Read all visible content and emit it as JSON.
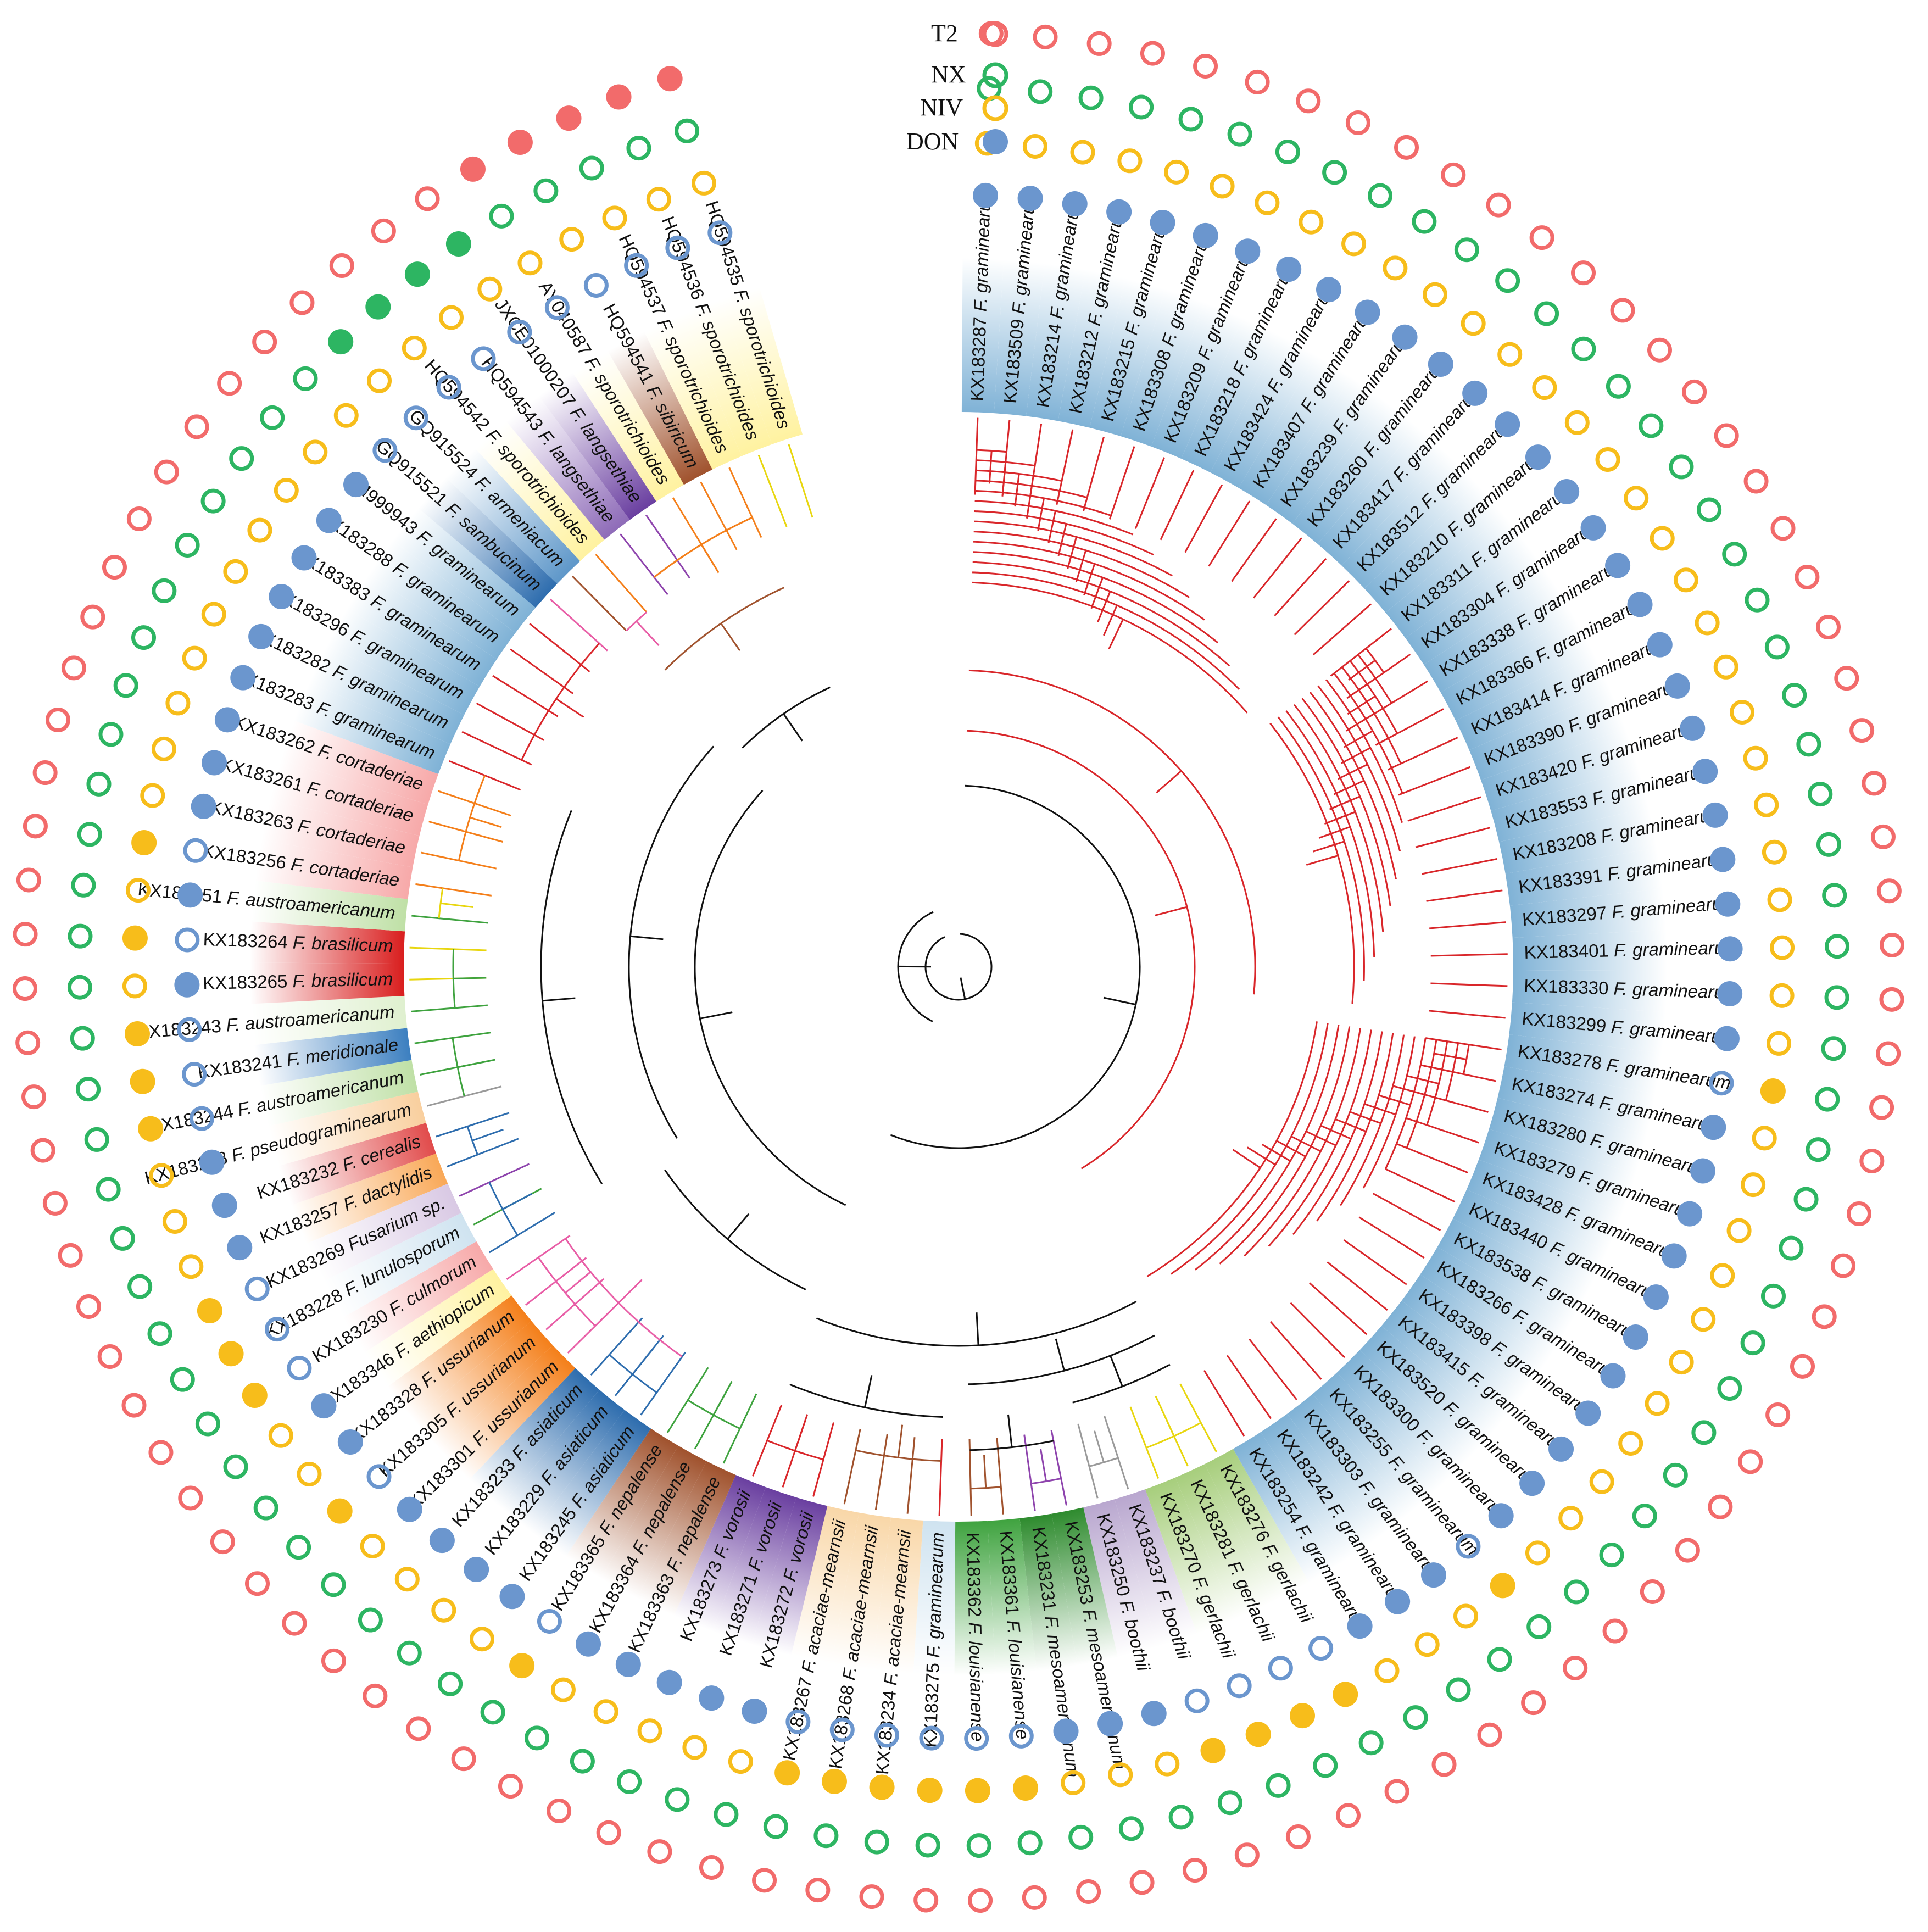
{
  "legend": [
    {
      "label": "T2",
      "color": "#F26B6B"
    },
    {
      "label": "NX",
      "color": "#2DB562"
    },
    {
      "label": "NIV",
      "color": "#F7BD1B"
    },
    {
      "label": "DON",
      "color": "#6B96CE"
    }
  ],
  "tips": [
    {
      "acc": "KX183287",
      "sp": "F. graminearum",
      "c": "#7FB2D6",
      "br": "#D9262A",
      "t": [
        0,
        0,
        0,
        1
      ]
    },
    {
      "acc": "KX183509",
      "sp": "F. graminearum",
      "c": "#7FB2D6",
      "br": "#D9262A",
      "t": [
        0,
        0,
        0,
        1
      ]
    },
    {
      "acc": "KX183214",
      "sp": "F. graminearum",
      "c": "#7FB2D6",
      "br": "#D9262A",
      "t": [
        0,
        0,
        0,
        1
      ]
    },
    {
      "acc": "KX183212",
      "sp": "F. graminearum",
      "c": "#7FB2D6",
      "br": "#D9262A",
      "t": [
        0,
        0,
        0,
        1
      ]
    },
    {
      "acc": "KX183215",
      "sp": "F. graminearum",
      "c": "#7FB2D6",
      "br": "#D9262A",
      "t": [
        0,
        0,
        0,
        1
      ]
    },
    {
      "acc": "KX183308",
      "sp": "F. graminearum",
      "c": "#7FB2D6",
      "br": "#D9262A",
      "t": [
        0,
        0,
        0,
        1
      ]
    },
    {
      "acc": "KX183209",
      "sp": "F. graminearum",
      "c": "#7FB2D6",
      "br": "#D9262A",
      "t": [
        0,
        0,
        0,
        1
      ]
    },
    {
      "acc": "KX183218",
      "sp": "F. graminearum",
      "c": "#7FB2D6",
      "br": "#D9262A",
      "t": [
        0,
        0,
        0,
        1
      ]
    },
    {
      "acc": "KX183424",
      "sp": "F. graminearum",
      "c": "#7FB2D6",
      "br": "#D9262A",
      "t": [
        0,
        0,
        0,
        1
      ]
    },
    {
      "acc": "KX183407",
      "sp": "F. graminearum",
      "c": "#7FB2D6",
      "br": "#D9262A",
      "t": [
        0,
        0,
        0,
        1
      ]
    },
    {
      "acc": "KX183239",
      "sp": "F. graminearum",
      "c": "#7FB2D6",
      "br": "#D9262A",
      "t": [
        0,
        0,
        0,
        1
      ]
    },
    {
      "acc": "KX183260",
      "sp": "F. graminearum",
      "c": "#7FB2D6",
      "br": "#D9262A",
      "t": [
        0,
        0,
        0,
        1
      ]
    },
    {
      "acc": "KX183417",
      "sp": "F. graminearum",
      "c": "#7FB2D6",
      "br": "#D9262A",
      "t": [
        0,
        0,
        0,
        1
      ]
    },
    {
      "acc": "KX183512",
      "sp": "F. graminearum",
      "c": "#7FB2D6",
      "br": "#D9262A",
      "t": [
        0,
        0,
        0,
        1
      ]
    },
    {
      "acc": "KX183210",
      "sp": "F. graminearum",
      "c": "#7FB2D6",
      "br": "#D9262A",
      "t": [
        0,
        0,
        0,
        1
      ]
    },
    {
      "acc": "KX183311",
      "sp": "F. graminearum",
      "c": "#7FB2D6",
      "br": "#D9262A",
      "t": [
        0,
        0,
        0,
        1
      ]
    },
    {
      "acc": "KX183304",
      "sp": "F. graminearum",
      "c": "#7FB2D6",
      "br": "#D9262A",
      "t": [
        0,
        0,
        0,
        1
      ]
    },
    {
      "acc": "KX183338",
      "sp": "F. graminearum",
      "c": "#7FB2D6",
      "br": "#D9262A",
      "t": [
        0,
        0,
        0,
        1
      ]
    },
    {
      "acc": "KX183366",
      "sp": "F. graminearum",
      "c": "#7FB2D6",
      "br": "#D9262A",
      "t": [
        0,
        0,
        0,
        1
      ]
    },
    {
      "acc": "KX183414",
      "sp": "F. graminearum",
      "c": "#7FB2D6",
      "br": "#D9262A",
      "t": [
        0,
        0,
        0,
        1
      ]
    },
    {
      "acc": "KX183390",
      "sp": "F. graminearum",
      "c": "#7FB2D6",
      "br": "#D9262A",
      "t": [
        0,
        0,
        0,
        1
      ]
    },
    {
      "acc": "KX183420",
      "sp": "F. graminearum",
      "c": "#7FB2D6",
      "br": "#D9262A",
      "t": [
        0,
        0,
        0,
        1
      ]
    },
    {
      "acc": "KX183553",
      "sp": "F. graminearum",
      "c": "#7FB2D6",
      "br": "#D9262A",
      "t": [
        0,
        0,
        0,
        1
      ]
    },
    {
      "acc": "KX183208",
      "sp": "F. graminearum",
      "c": "#7FB2D6",
      "br": "#D9262A",
      "t": [
        0,
        0,
        0,
        1
      ]
    },
    {
      "acc": "KX183391",
      "sp": "F. graminearum",
      "c": "#7FB2D6",
      "br": "#D9262A",
      "t": [
        0,
        0,
        0,
        1
      ]
    },
    {
      "acc": "KX183297",
      "sp": "F. graminearum",
      "c": "#7FB2D6",
      "br": "#D9262A",
      "t": [
        0,
        0,
        0,
        1
      ]
    },
    {
      "acc": "KX183401",
      "sp": "F. graminearum",
      "c": "#7FB2D6",
      "br": "#D9262A",
      "t": [
        0,
        0,
        0,
        1
      ]
    },
    {
      "acc": "KX183330",
      "sp": "F. graminearum",
      "c": "#7FB2D6",
      "br": "#D9262A",
      "t": [
        0,
        0,
        0,
        1
      ]
    },
    {
      "acc": "KX183299",
      "sp": "F. graminearum",
      "c": "#7FB2D6",
      "br": "#D9262A",
      "t": [
        0,
        0,
        0,
        1
      ]
    },
    {
      "acc": "KX183278",
      "sp": "F. graminearum",
      "c": "#7FB2D6",
      "br": "#D9262A",
      "t": [
        0,
        0,
        1,
        0
      ]
    },
    {
      "acc": "KX183274",
      "sp": "F. graminearum",
      "c": "#7FB2D6",
      "br": "#D9262A",
      "t": [
        0,
        0,
        0,
        1
      ]
    },
    {
      "acc": "KX183280",
      "sp": "F. graminearum",
      "c": "#7FB2D6",
      "br": "#D9262A",
      "t": [
        0,
        0,
        0,
        1
      ]
    },
    {
      "acc": "KX183279",
      "sp": "F. graminearum",
      "c": "#7FB2D6",
      "br": "#D9262A",
      "t": [
        0,
        0,
        0,
        1
      ]
    },
    {
      "acc": "KX183428",
      "sp": "F. graminearum",
      "c": "#7FB2D6",
      "br": "#D9262A",
      "t": [
        0,
        0,
        0,
        1
      ]
    },
    {
      "acc": "KX183440",
      "sp": "F. graminearum",
      "c": "#7FB2D6",
      "br": "#D9262A",
      "t": [
        0,
        0,
        0,
        1
      ]
    },
    {
      "acc": "KX183538",
      "sp": "F. graminearum",
      "c": "#7FB2D6",
      "br": "#D9262A",
      "t": [
        0,
        0,
        0,
        1
      ]
    },
    {
      "acc": "KX183266",
      "sp": "F. graminearum",
      "c": "#7FB2D6",
      "br": "#D9262A",
      "t": [
        0,
        0,
        0,
        1
      ]
    },
    {
      "acc": "KX183398",
      "sp": "F. graminearum",
      "c": "#7FB2D6",
      "br": "#D9262A",
      "t": [
        0,
        0,
        0,
        1
      ]
    },
    {
      "acc": "KX183415",
      "sp": "F. graminearum",
      "c": "#7FB2D6",
      "br": "#D9262A",
      "t": [
        0,
        0,
        0,
        1
      ]
    },
    {
      "acc": "KX183520",
      "sp": "F. graminearum",
      "c": "#7FB2D6",
      "br": "#D9262A",
      "t": [
        0,
        0,
        0,
        1
      ]
    },
    {
      "acc": "KX183300",
      "sp": "F. graminearum",
      "c": "#7FB2D6",
      "br": "#D9262A",
      "t": [
        0,
        0,
        0,
        1
      ]
    },
    {
      "acc": "KX183255",
      "sp": "F. graminearum",
      "c": "#7FB2D6",
      "br": "#D9262A",
      "t": [
        0,
        0,
        1,
        0
      ]
    },
    {
      "acc": "KX183303",
      "sp": "F. graminearum",
      "c": "#7FB2D6",
      "br": "#D9262A",
      "t": [
        0,
        0,
        0,
        1
      ]
    },
    {
      "acc": "KX183242",
      "sp": "F. graminearum",
      "c": "#7FB2D6",
      "br": "#D9262A",
      "t": [
        0,
        0,
        0,
        1
      ]
    },
    {
      "acc": "KX183254",
      "sp": "F. graminearum",
      "c": "#7FB2D6",
      "br": "#D9262A",
      "t": [
        0,
        0,
        0,
        1
      ]
    },
    {
      "acc": "KX183276",
      "sp": "F. gerlachii",
      "c": "#A7CE7C",
      "br": "#E8D60F",
      "t": [
        0,
        0,
        1,
        0
      ]
    },
    {
      "acc": "KX183281",
      "sp": "F. gerlachii",
      "c": "#A7CE7C",
      "br": "#E8D60F",
      "t": [
        0,
        0,
        1,
        0
      ]
    },
    {
      "acc": "KX183270",
      "sp": "F. gerlachii",
      "c": "#A7CE7C",
      "br": "#E8D60F",
      "t": [
        0,
        0,
        1,
        0
      ]
    },
    {
      "acc": "KX183237",
      "sp": "F. boothii",
      "c": "#B9A7CF",
      "br": "#9A9A9A",
      "t": [
        0,
        0,
        1,
        0
      ]
    },
    {
      "acc": "KX183250",
      "sp": "F. boothii",
      "c": "#B9A7CF",
      "br": "#9A9A9A",
      "t": [
        0,
        0,
        0,
        1
      ]
    },
    {
      "acc": "KX183253",
      "sp": "F. mesoamericanum",
      "c": "#2E8B2E",
      "br": "#8E44AD",
      "t": [
        0,
        0,
        0,
        1
      ]
    },
    {
      "acc": "KX183231",
      "sp": "F. mesoamericanum",
      "c": "#2E8B2E",
      "br": "#8E44AD",
      "t": [
        0,
        0,
        0,
        1
      ]
    },
    {
      "acc": "KX183361",
      "sp": "F. louisianense",
      "c": "#3FA33F",
      "br": "#A0522D",
      "t": [
        0,
        0,
        1,
        0
      ]
    },
    {
      "acc": "KX183362",
      "sp": "F. louisianense",
      "c": "#3FA33F",
      "br": "#A0522D",
      "t": [
        0,
        0,
        1,
        0
      ]
    },
    {
      "acc": "KX183275",
      "sp": "F. graminearum",
      "c": "#CFE3F0",
      "br": "#D9262A",
      "t": [
        0,
        0,
        1,
        0
      ]
    },
    {
      "acc": "KX183234",
      "sp": "F. acaciae-mearnsii",
      "c": "#F9D7A8",
      "br": "#A0522D",
      "t": [
        0,
        0,
        1,
        0
      ]
    },
    {
      "acc": "KX183268",
      "sp": "F. acaciae-mearnsii",
      "c": "#F9D7A8",
      "br": "#A0522D",
      "t": [
        0,
        0,
        1,
        0
      ]
    },
    {
      "acc": "KX183267",
      "sp": "F. acaciae-mearnsii",
      "c": "#F9D7A8",
      "br": "#A0522D",
      "t": [
        0,
        0,
        1,
        0
      ]
    },
    {
      "acc": "KX183272",
      "sp": "F. vorosii",
      "c": "#6A3FA0",
      "br": "#D9262A",
      "t": [
        0,
        0,
        0,
        1
      ]
    },
    {
      "acc": "KX183271",
      "sp": "F. vorosii",
      "c": "#6A3FA0",
      "br": "#D9262A",
      "t": [
        0,
        0,
        0,
        1
      ]
    },
    {
      "acc": "KX183273",
      "sp": "F. vorosii",
      "c": "#6A3FA0",
      "br": "#D9262A",
      "t": [
        0,
        0,
        0,
        1
      ]
    },
    {
      "acc": "KX183363",
      "sp": "F. nepalense",
      "c": "#A0522D",
      "br": "#3FA33F",
      "t": [
        0,
        0,
        0,
        1
      ]
    },
    {
      "acc": "KX183364",
      "sp": "F. nepalense",
      "c": "#A0522D",
      "br": "#3FA33F",
      "t": [
        0,
        0,
        0,
        1
      ]
    },
    {
      "acc": "KX183365",
      "sp": "F. nepalense",
      "c": "#A0522D",
      "br": "#3FA33F",
      "t": [
        0,
        0,
        1,
        0
      ]
    },
    {
      "acc": "KX183245",
      "sp": "F. asiaticum",
      "c": "#2E6DAE",
      "br": "#2E6DAE",
      "t": [
        0,
        0,
        0,
        1
      ]
    },
    {
      "acc": "KX183229",
      "sp": "F. asiaticum",
      "c": "#2E6DAE",
      "br": "#2E6DAE",
      "t": [
        0,
        0,
        0,
        1
      ]
    },
    {
      "acc": "KX183233",
      "sp": "F. asiaticum",
      "c": "#2E6DAE",
      "br": "#2E6DAE",
      "t": [
        0,
        0,
        0,
        1
      ]
    },
    {
      "acc": "KX183301",
      "sp": "F. ussurianum",
      "c": "#F47F1A",
      "br": "#E85DA6",
      "t": [
        0,
        0,
        0,
        1
      ]
    },
    {
      "acc": "KX183305",
      "sp": "F. ussurianum",
      "c": "#F47F1A",
      "br": "#E85DA6",
      "t": [
        0,
        0,
        1,
        0
      ]
    },
    {
      "acc": "KX183328",
      "sp": "F. ussurianum",
      "c": "#F47F1A",
      "br": "#E85DA6",
      "t": [
        0,
        0,
        0,
        1
      ]
    },
    {
      "acc": "KX183346",
      "sp": "F. aethiopicum",
      "c": "#FFF2A0",
      "br": "#E85DA6",
      "t": [
        0,
        0,
        0,
        1
      ]
    },
    {
      "acc": "KX183230",
      "sp": "F. culmorum",
      "c": "#F7A9A9",
      "br": "#2E6DAE",
      "t": [
        0,
        0,
        1,
        0
      ]
    },
    {
      "acc": "KX183228",
      "sp": "F. lunulosporum",
      "c": "#CFE3F0",
      "br": "#3FA33F",
      "t": [
        0,
        0,
        1,
        0
      ]
    },
    {
      "acc": "KX183269",
      "sp": "Fusarium sp.",
      "c": "#D9C9E4",
      "br": "#8E44AD",
      "t": [
        0,
        0,
        1,
        0
      ]
    },
    {
      "acc": "KX183257",
      "sp": "F. dactylidis",
      "c": "#F9A857",
      "br": "#2E6DAE",
      "t": [
        0,
        0,
        0,
        1
      ]
    },
    {
      "acc": "KX183232",
      "sp": "F. cerealis",
      "c": "#E14B4B",
      "br": "#2E6DAE",
      "t": [
        0,
        0,
        0,
        1
      ]
    },
    {
      "acc": "KX183238",
      "sp": "F. pseudograminearum",
      "c": "#F9CF9E",
      "br": "#9A9A9A",
      "t": [
        0,
        0,
        0,
        1
      ]
    },
    {
      "acc": "KX183244",
      "sp": "F. austroamericanum",
      "c": "#BFE0A6",
      "br": "#3FA33F",
      "t": [
        0,
        0,
        1,
        0
      ]
    },
    {
      "acc": "KX183241",
      "sp": "F. meridionale",
      "c": "#3C7FC0",
      "br": "#3FA33F",
      "t": [
        0,
        0,
        1,
        0
      ]
    },
    {
      "acc": "KX183243",
      "sp": "F. austroamericanum",
      "c": "#DFF0CF",
      "br": "#3FA33F",
      "t": [
        0,
        0,
        1,
        0
      ]
    },
    {
      "acc": "KX183265",
      "sp": "F. brasilicum",
      "c": "#D91E1E",
      "br": "#E8D60F",
      "t": [
        0,
        0,
        0,
        1
      ]
    },
    {
      "acc": "KX183264",
      "sp": "F. brasilicum",
      "c": "#D91E1E",
      "br": "#E8D60F",
      "t": [
        0,
        0,
        1,
        0
      ]
    },
    {
      "acc": "KX183251",
      "sp": "F. austroamericanum",
      "c": "#BFE0A6",
      "br": "#3FA33F",
      "t": [
        0,
        0,
        0,
        1
      ]
    },
    {
      "acc": "KX183256",
      "sp": "F. cortaderiae",
      "c": "#F7A9A9",
      "br": "#F47F1A",
      "t": [
        0,
        0,
        1,
        0
      ]
    },
    {
      "acc": "KX183263",
      "sp": "F. cortaderiae",
      "c": "#F7A9A9",
      "br": "#F47F1A",
      "t": [
        0,
        0,
        0,
        1
      ]
    },
    {
      "acc": "KX183261",
      "sp": "F. cortaderiae",
      "c": "#F7A9A9",
      "br": "#F47F1A",
      "t": [
        0,
        0,
        0,
        1
      ]
    },
    {
      "acc": "KX183262",
      "sp": "F. cortaderiae",
      "c": "#F7A9A9",
      "br": "#F47F1A",
      "t": [
        0,
        0,
        0,
        1
      ]
    },
    {
      "acc": "KX183283",
      "sp": "F. graminearum",
      "c": "#7FB2D6",
      "br": "#D9262A",
      "t": [
        0,
        0,
        0,
        1
      ]
    },
    {
      "acc": "KX183282",
      "sp": "F. graminearum",
      "c": "#7FB2D6",
      "br": "#D9262A",
      "t": [
        0,
        0,
        0,
        1
      ]
    },
    {
      "acc": "KX183296",
      "sp": "F. graminearum",
      "c": "#7FB2D6",
      "br": "#D9262A",
      "t": [
        0,
        0,
        0,
        1
      ]
    },
    {
      "acc": "KX183383",
      "sp": "F. graminearum",
      "c": "#7FB2D6",
      "br": "#D9262A",
      "t": [
        0,
        0,
        0,
        1
      ]
    },
    {
      "acc": "KX183288",
      "sp": "F. graminearum",
      "c": "#7FB2D6",
      "br": "#D9262A",
      "t": [
        0,
        0,
        0,
        1
      ]
    },
    {
      "acc": "KM999943",
      "sp": "F. graminearum",
      "c": "#7FB2D6",
      "br": "#D9262A",
      "t": [
        0,
        0,
        0,
        1
      ]
    },
    {
      "acc": "GQ915521",
      "sp": "F. sambucinum",
      "c": "#2E6DAE",
      "br": "#E85DA6",
      "t": [
        0,
        0,
        0,
        0
      ]
    },
    {
      "acc": "GQ915524",
      "sp": "F. armeniacum",
      "c": "#5E97C9",
      "br": "#A0522D",
      "t": [
        0,
        1,
        0,
        0
      ]
    },
    {
      "acc": "HQ594542",
      "sp": "F. sporotrichioides",
      "c": "#FFF2A0",
      "br": "#F47F1A",
      "t": [
        0,
        1,
        0,
        0
      ]
    },
    {
      "acc": "HQ594543",
      "sp": "F. langsethiae",
      "c": "#8E6BB8",
      "br": "#8E44AD",
      "t": [
        0,
        1,
        0,
        0
      ]
    },
    {
      "acc": "JXCE01000207",
      "sp": "F. langsethiae",
      "c": "#6A3FA0",
      "br": "#8E44AD",
      "t": [
        0,
        1,
        0,
        0
      ]
    },
    {
      "acc": "AY040587",
      "sp": "F. sporotrichioides",
      "c": "#FFF2A0",
      "br": "#F47F1A",
      "t": [
        1,
        0,
        0,
        0
      ]
    },
    {
      "acc": "HQ594541",
      "sp": "F. sibiricum",
      "c": "#A0522D",
      "br": "#F47F1A",
      "t": [
        1,
        0,
        0,
        0
      ]
    },
    {
      "acc": "HQ594537",
      "sp": "F. sporotrichioides",
      "c": "#FFF2A0",
      "br": "#F47F1A",
      "t": [
        1,
        0,
        0,
        0
      ]
    },
    {
      "acc": "HQ594536",
      "sp": "F. sporotrichioides",
      "c": "#FFF2A0",
      "br": "#E8D60F",
      "t": [
        1,
        0,
        0,
        0
      ]
    },
    {
      "acc": "HQ594535",
      "sp": "F. sporotrichioides",
      "c": "#FFF2A0",
      "br": "#E8D60F",
      "t": [
        1,
        0,
        0,
        0
      ]
    }
  ]
}
